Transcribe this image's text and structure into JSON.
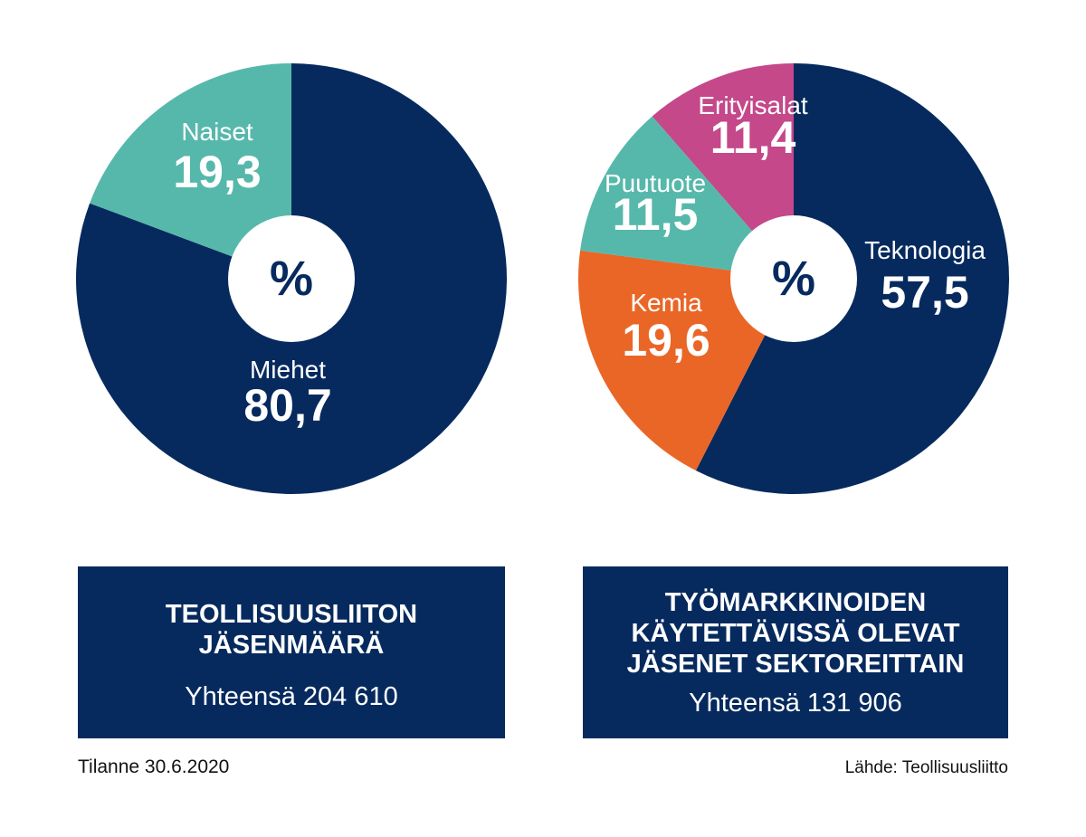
{
  "chart_data": [
    {
      "type": "pie",
      "center_label": "%",
      "slices": [
        {
          "label": "Miehet",
          "display": "80,7",
          "value": 80.7,
          "color": "#062a5e"
        },
        {
          "label": "Naiset",
          "display": "19,3",
          "value": 19.3,
          "color": "#56b8ab"
        }
      ]
    },
    {
      "type": "pie",
      "center_label": "%",
      "slices": [
        {
          "label": "Teknologia",
          "display": "57,5",
          "value": 57.5,
          "color": "#062a5e"
        },
        {
          "label": "Kemia",
          "display": "19,6",
          "value": 19.6,
          "color": "#ea6626"
        },
        {
          "label": "Puutuote",
          "display": "11,5",
          "value": 11.5,
          "color": "#56b8ab"
        },
        {
          "label": "Erityisalat",
          "display": "11,4",
          "value": 11.4,
          "color": "#c4488a"
        }
      ]
    }
  ],
  "boxes": [
    {
      "title_lines": [
        "TEOLLISUUSLIITON",
        "JÄSENMÄÄRÄ"
      ],
      "subtitle": "Yhteensä 204 610"
    },
    {
      "title_lines": [
        "TYÖMARKKINOIDEN",
        "KÄYTETTÄVISSÄ OLEVAT",
        "JÄSENET SEKTOREITTAIN"
      ],
      "subtitle": "Yhteensä 131 906"
    }
  ],
  "footer": {
    "date": "Tilanne 30.6.2020",
    "source": "Lähde: Teollisuusliitto"
  }
}
